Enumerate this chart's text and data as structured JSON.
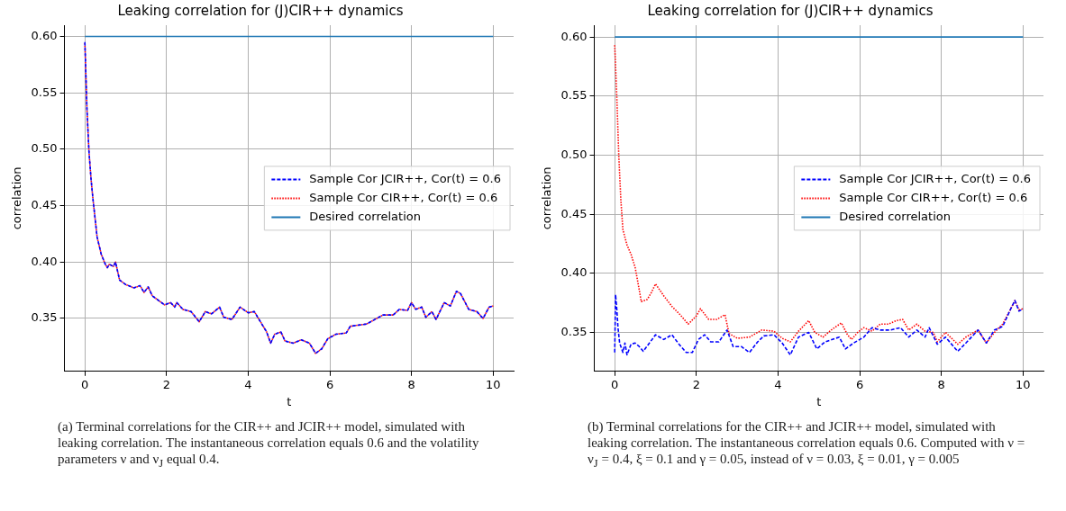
{
  "chart_data": [
    {
      "type": "line",
      "title": "Leaking correlation for (J)CIR++ dynamics",
      "xlabel": "t",
      "ylabel": "correlation",
      "xlim": [
        -0.5,
        10.5
      ],
      "xticks": [
        0,
        2,
        4,
        6,
        8,
        10
      ],
      "ylim": [
        0.303,
        0.61
      ],
      "yticks": [
        {
          "value": 0.35,
          "label": "0.35"
        },
        {
          "value": 0.4,
          "label": "0.40"
        },
        {
          "value": 0.45,
          "label": "0.45"
        },
        {
          "value": 0.5,
          "label": "0.50"
        },
        {
          "value": 0.55,
          "label": "0.55"
        },
        {
          "value": 0.6,
          "label": "0.60"
        }
      ],
      "grid": true,
      "legend": "right",
      "marker": "none",
      "series": [
        {
          "name": "Sample Cor JCIR++, Cor(t) = 0.6",
          "color": "#0000ff",
          "line_style": "dashed",
          "x": [
            0,
            0.05,
            0.1,
            0.15,
            0.2,
            0.3,
            0.4,
            0.5,
            0.55,
            0.6,
            0.7,
            0.75,
            0.85,
            1.0,
            1.2,
            1.35,
            1.45,
            1.55,
            1.65,
            1.8,
            1.95,
            2.1,
            2.2,
            2.25,
            2.4,
            2.6,
            2.8,
            2.95,
            3.1,
            3.3,
            3.4,
            3.6,
            3.8,
            4.0,
            4.15,
            4.3,
            4.45,
            4.55,
            4.65,
            4.8,
            4.9,
            5.1,
            5.3,
            5.5,
            5.65,
            5.8,
            5.95,
            6.15,
            6.4,
            6.5,
            6.7,
            6.9,
            7.1,
            7.3,
            7.55,
            7.7,
            7.9,
            8.0,
            8.1,
            8.25,
            8.35,
            8.5,
            8.6,
            8.8,
            8.95,
            9.1,
            9.2,
            9.4,
            9.6,
            9.75,
            9.9,
            10.0
          ],
          "values": [
            0.595,
            0.536,
            0.498,
            0.474,
            0.455,
            0.422,
            0.407,
            0.398,
            0.395,
            0.398,
            0.396,
            0.4,
            0.384,
            0.38,
            0.377,
            0.379,
            0.373,
            0.378,
            0.37,
            0.366,
            0.362,
            0.364,
            0.36,
            0.364,
            0.358,
            0.356,
            0.347,
            0.356,
            0.354,
            0.36,
            0.351,
            0.349,
            0.36,
            0.355,
            0.356,
            0.347,
            0.338,
            0.328,
            0.336,
            0.338,
            0.33,
            0.328,
            0.331,
            0.328,
            0.319,
            0.323,
            0.332,
            0.336,
            0.337,
            0.343,
            0.344,
            0.345,
            0.349,
            0.353,
            0.353,
            0.358,
            0.357,
            0.364,
            0.358,
            0.36,
            0.351,
            0.356,
            0.349,
            0.364,
            0.361,
            0.374,
            0.372,
            0.358,
            0.356,
            0.35,
            0.36,
            0.361
          ]
        },
        {
          "name": "Sample Cor CIR++, Cor(t) = 0.6",
          "color": "#ff0000",
          "line_style": "dotted",
          "x": [
            0,
            0.05,
            0.1,
            0.15,
            0.2,
            0.3,
            0.4,
            0.5,
            0.55,
            0.6,
            0.7,
            0.75,
            0.85,
            1.0,
            1.2,
            1.35,
            1.45,
            1.55,
            1.65,
            1.8,
            1.95,
            2.1,
            2.2,
            2.25,
            2.4,
            2.6,
            2.8,
            2.95,
            3.1,
            3.3,
            3.4,
            3.6,
            3.8,
            4.0,
            4.15,
            4.3,
            4.45,
            4.55,
            4.65,
            4.8,
            4.9,
            5.1,
            5.3,
            5.5,
            5.65,
            5.8,
            5.95,
            6.15,
            6.4,
            6.5,
            6.7,
            6.9,
            7.1,
            7.3,
            7.55,
            7.7,
            7.9,
            8.0,
            8.1,
            8.25,
            8.35,
            8.5,
            8.6,
            8.8,
            8.95,
            9.1,
            9.2,
            9.4,
            9.6,
            9.75,
            9.9,
            10.0
          ],
          "values": [
            0.594,
            0.536,
            0.498,
            0.474,
            0.455,
            0.422,
            0.407,
            0.398,
            0.395,
            0.398,
            0.396,
            0.4,
            0.384,
            0.38,
            0.377,
            0.379,
            0.373,
            0.378,
            0.37,
            0.366,
            0.362,
            0.364,
            0.36,
            0.364,
            0.358,
            0.356,
            0.347,
            0.356,
            0.354,
            0.36,
            0.351,
            0.349,
            0.36,
            0.355,
            0.356,
            0.347,
            0.338,
            0.328,
            0.336,
            0.338,
            0.33,
            0.328,
            0.331,
            0.328,
            0.319,
            0.323,
            0.332,
            0.336,
            0.337,
            0.343,
            0.344,
            0.345,
            0.349,
            0.353,
            0.353,
            0.358,
            0.357,
            0.364,
            0.358,
            0.36,
            0.351,
            0.356,
            0.349,
            0.364,
            0.361,
            0.374,
            0.372,
            0.358,
            0.356,
            0.35,
            0.36,
            0.361
          ]
        },
        {
          "name": "Desired correlation",
          "color": "#1f77b4",
          "line_style": "solid",
          "x": [
            0,
            10
          ],
          "values": [
            0.6,
            0.6
          ]
        }
      ],
      "annotations": [
        "(a) Terminal correlations for the CIR++ and JCIR++ model, simulated with leaking correlation. The instantaneous correlation equals 0.6 and the volatility parameters ν and ν$_{J}$ equal 0.4."
      ]
    },
    {
      "type": "line",
      "title": "Leaking correlation for (J)CIR++ dynamics",
      "xlabel": "t",
      "ylabel": "correlation",
      "xlim": [
        -0.5,
        10.5
      ],
      "xticks": [
        0,
        2,
        4,
        6,
        8,
        10
      ],
      "ylim": [
        0.317,
        0.61
      ],
      "yticks": [
        {
          "value": 0.35,
          "label": "0.35"
        },
        {
          "value": 0.4,
          "label": "0.40"
        },
        {
          "value": 0.45,
          "label": "0.45"
        },
        {
          "value": 0.5,
          "label": "0.50"
        },
        {
          "value": 0.55,
          "label": "0.55"
        },
        {
          "value": 0.6,
          "label": "0.60"
        }
      ],
      "grid": true,
      "legend": "right",
      "marker": "none",
      "series": [
        {
          "name": "Sample Cor JCIR++, Cor(t) = 0.6",
          "color": "#0000ff",
          "line_style": "dashed",
          "x": [
            0,
            0.02,
            0.05,
            0.08,
            0.12,
            0.2,
            0.25,
            0.3,
            0.4,
            0.5,
            0.6,
            0.7,
            0.85,
            1.0,
            1.2,
            1.4,
            1.55,
            1.75,
            1.9,
            2.05,
            2.2,
            2.35,
            2.55,
            2.75,
            2.9,
            3.1,
            3.3,
            3.5,
            3.65,
            3.9,
            4.1,
            4.3,
            4.5,
            4.75,
            4.95,
            5.15,
            5.5,
            5.65,
            5.85,
            6.1,
            6.3,
            6.5,
            6.75,
            7.0,
            7.2,
            7.4,
            7.6,
            7.7,
            7.9,
            8.1,
            8.4,
            8.6,
            8.9,
            9.1,
            9.3,
            9.5,
            9.7,
            9.8,
            9.9,
            10.0
          ],
          "values": [
            0.333,
            0.382,
            0.37,
            0.354,
            0.341,
            0.333,
            0.341,
            0.331,
            0.34,
            0.341,
            0.338,
            0.334,
            0.341,
            0.348,
            0.344,
            0.348,
            0.341,
            0.333,
            0.333,
            0.344,
            0.348,
            0.342,
            0.342,
            0.352,
            0.338,
            0.338,
            0.333,
            0.342,
            0.347,
            0.348,
            0.341,
            0.331,
            0.346,
            0.35,
            0.336,
            0.342,
            0.346,
            0.336,
            0.341,
            0.346,
            0.354,
            0.352,
            0.352,
            0.354,
            0.346,
            0.352,
            0.346,
            0.354,
            0.34,
            0.346,
            0.334,
            0.341,
            0.352,
            0.341,
            0.352,
            0.355,
            0.37,
            0.377,
            0.368,
            0.37
          ]
        },
        {
          "name": "Sample Cor CIR++, Cor(t) = 0.6",
          "color": "#ff0000",
          "line_style": "dotted",
          "x": [
            0,
            0.05,
            0.1,
            0.15,
            0.2,
            0.3,
            0.4,
            0.5,
            0.6,
            0.65,
            0.8,
            0.9,
            1.0,
            1.2,
            1.4,
            1.6,
            1.8,
            2.0,
            2.1,
            2.3,
            2.5,
            2.7,
            2.8,
            3.0,
            3.3,
            3.6,
            3.9,
            4.1,
            4.3,
            4.5,
            4.75,
            4.9,
            5.1,
            5.3,
            5.55,
            5.7,
            5.8,
            5.95,
            6.1,
            6.3,
            6.5,
            6.7,
            6.9,
            7.05,
            7.2,
            7.4,
            7.6,
            7.8,
            7.9,
            8.1,
            8.4,
            8.6,
            8.9,
            9.1,
            9.3,
            9.5,
            9.7,
            9.8,
            9.9,
            10.0
          ],
          "values": [
            0.593,
            0.55,
            0.499,
            0.462,
            0.437,
            0.424,
            0.416,
            0.405,
            0.386,
            0.376,
            0.378,
            0.384,
            0.391,
            0.381,
            0.372,
            0.365,
            0.357,
            0.364,
            0.37,
            0.361,
            0.361,
            0.365,
            0.349,
            0.345,
            0.346,
            0.352,
            0.351,
            0.345,
            0.342,
            0.351,
            0.36,
            0.35,
            0.346,
            0.352,
            0.358,
            0.348,
            0.344,
            0.35,
            0.354,
            0.351,
            0.357,
            0.357,
            0.36,
            0.361,
            0.352,
            0.357,
            0.351,
            0.35,
            0.342,
            0.35,
            0.34,
            0.346,
            0.352,
            0.341,
            0.35,
            0.357,
            0.37,
            0.377,
            0.369,
            0.37
          ]
        },
        {
          "name": "Desired correlation",
          "color": "#1f77b4",
          "line_style": "solid",
          "x": [
            0,
            10
          ],
          "values": [
            0.6,
            0.6
          ]
        }
      ],
      "annotations": [
        "(b) Terminal correlations for the CIR++ and JCIR++ model, simulated with leaking correlation. The instantaneous correlation equals 0.6. Computed with ν = ν$_{J}$ = 0.4, ξ = 0.1 and γ = 0.05, instead of ν = 0.03, ξ = 0.01, γ = 0.005"
      ]
    }
  ]
}
